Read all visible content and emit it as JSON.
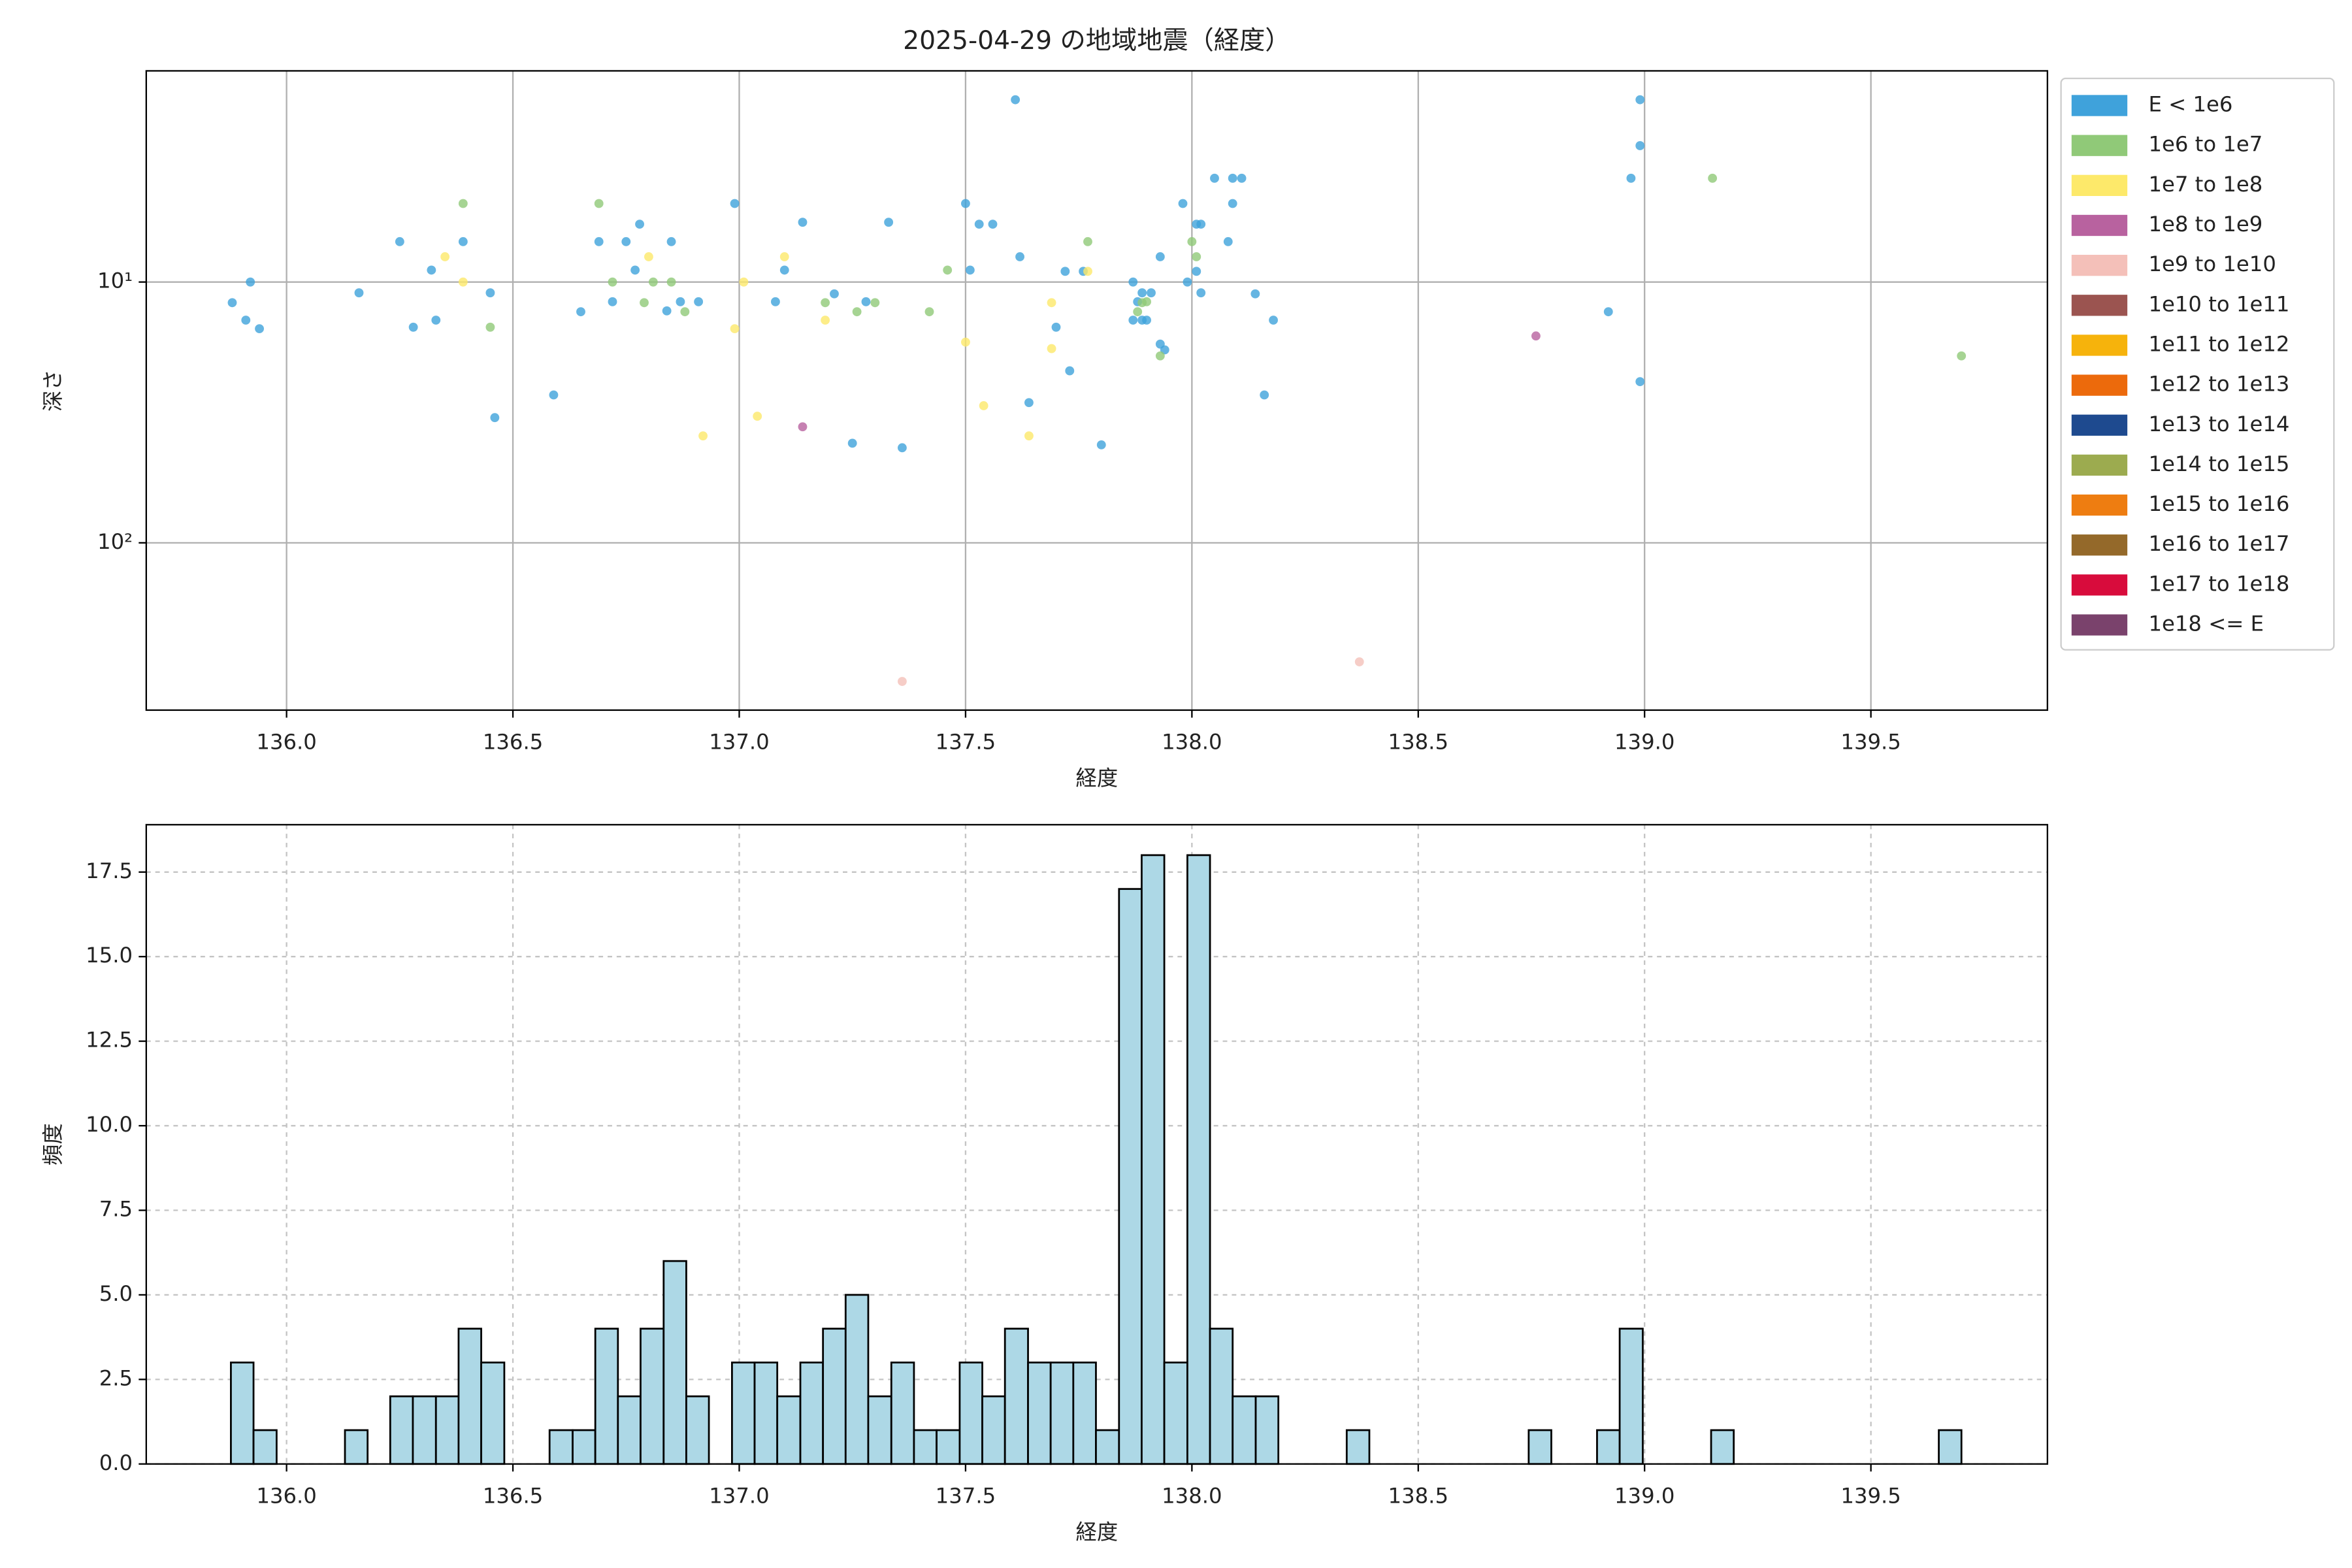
{
  "chart_data": [
    {
      "type": "scatter",
      "title": "2025-04-29 の地域地震（経度）",
      "xlabel": "経度",
      "ylabel": "深さ",
      "xlim": [
        135.69,
        139.89
      ],
      "xticks": [
        {
          "value": 136,
          "label": "136.0"
        },
        {
          "value": 136.5,
          "label": "136.5"
        },
        {
          "value": 137,
          "label": "137.0"
        },
        {
          "value": 137.5,
          "label": "137.5"
        },
        {
          "value": 138,
          "label": "138.0"
        },
        {
          "value": 138.5,
          "label": "138.5"
        },
        {
          "value": 139,
          "label": "139.0"
        },
        {
          "value": 139.5,
          "label": "139.5"
        }
      ],
      "ylim": [
        1.55,
        438
      ],
      "yscale": "log",
      "y_inverted": true,
      "yticks": [
        {
          "value": 10,
          "label": "10¹"
        },
        {
          "value": 100,
          "label": "10²"
        }
      ],
      "grid": true,
      "legend": "outside-right",
      "series": [
        {
          "name": "E < 1e6",
          "color": "#3fa2db",
          "x": [
            135.88,
            135.92,
            135.91,
            135.94,
            136.16,
            136.25,
            136.28,
            136.32,
            136.33,
            136.39,
            136.45,
            136.46,
            136.59,
            136.65,
            136.69,
            136.72,
            136.75,
            136.77,
            136.78,
            136.84,
            136.85,
            136.87,
            136.91,
            136.99,
            137.08,
            137.1,
            137.14,
            137.21,
            137.25,
            137.28,
            137.33,
            137.36,
            137.5,
            137.51,
            137.53,
            137.56,
            137.61,
            137.62,
            137.64,
            137.7,
            137.72,
            137.73,
            137.76,
            137.8,
            137.87,
            137.87,
            137.88,
            137.89,
            137.89,
            137.9,
            137.91,
            137.93,
            137.93,
            137.94,
            137.98,
            137.99,
            138.01,
            138.02,
            138.01,
            138.02,
            138.05,
            138.08,
            138.09,
            138.11,
            138.09,
            138.14,
            138.16,
            138.18,
            138.92,
            138.97,
            138.99,
            138.99,
            138.99
          ],
          "values": [
            12.0,
            10.0,
            14.0,
            15.1,
            11.0,
            7.0,
            14.9,
            9.0,
            14.0,
            7.0,
            11.0,
            33.1,
            27.1,
            13.0,
            7.0,
            11.9,
            7.0,
            9.0,
            6.0,
            12.9,
            7.0,
            11.9,
            11.9,
            5.0,
            11.9,
            9.0,
            5.9,
            11.1,
            41.5,
            11.9,
            5.9,
            43.2,
            5.0,
            9.0,
            6.0,
            6.0,
            2.0,
            8.0,
            29.0,
            14.9,
            9.1,
            21.9,
            9.1,
            42.1,
            10.0,
            14.0,
            11.9,
            11.0,
            14.0,
            14.0,
            11.0,
            8.0,
            17.3,
            18.2,
            5.0,
            10.0,
            6.0,
            6.0,
            9.1,
            11.0,
            4.0,
            7.0,
            4.0,
            4.0,
            5.0,
            11.1,
            27.1,
            14.0,
            13.0,
            4.0,
            3.0,
            2.0,
            24.1
          ]
        },
        {
          "name": "1e6 to 1e7",
          "color": "#90c978",
          "x": [
            136.39,
            136.45,
            136.69,
            136.72,
            136.79,
            136.81,
            136.85,
            136.88,
            137.19,
            137.26,
            137.3,
            137.42,
            137.46,
            137.77,
            137.88,
            137.89,
            137.9,
            138.0,
            138.01,
            137.93,
            139.15,
            139.7
          ],
          "values": [
            5.0,
            14.9,
            5.0,
            10.0,
            12.0,
            10.0,
            10.0,
            13.0,
            12.0,
            13.0,
            12.0,
            13.0,
            9.0,
            7.0,
            13.0,
            12.0,
            11.9,
            7.0,
            8.0,
            19.2,
            4.0,
            19.2
          ]
        },
        {
          "name": "1e7 to 1e8",
          "color": "#fde96a",
          "x": [
            136.35,
            136.39,
            136.8,
            136.99,
            137.01,
            136.92,
            137.04,
            137.1,
            137.19,
            137.5,
            137.54,
            137.64,
            137.69,
            137.69,
            137.77
          ],
          "values": [
            8.0,
            10.0,
            8.0,
            15.1,
            10.0,
            38.9,
            32.7,
            8.0,
            14.0,
            17.0,
            29.8,
            38.9,
            12.0,
            18.0,
            9.1
          ]
        },
        {
          "name": "1e8 to 1e9",
          "color": "#b8629f",
          "x": [
            137.14,
            138.76
          ],
          "values": [
            35.9,
            16.1
          ]
        },
        {
          "name": "1e9 to 1e10",
          "color": "#f4c0b9",
          "x": [
            137.36,
            138.37
          ],
          "values": [
            340,
            286
          ]
        },
        {
          "name": "1e10 to 1e11",
          "color": "#9b5450",
          "x": [],
          "values": []
        },
        {
          "name": "1e11 to 1e12",
          "color": "#f6b30c",
          "x": [],
          "values": []
        },
        {
          "name": "1e12 to 1e13",
          "color": "#ec6a0c",
          "x": [],
          "values": []
        },
        {
          "name": "1e13 to 1e14",
          "color": "#1e4a8f",
          "x": [],
          "values": []
        },
        {
          "name": "1e14 to 1e15",
          "color": "#9cab4f",
          "x": [],
          "values": []
        },
        {
          "name": "1e15 to 1e16",
          "color": "#ee7d11",
          "x": [],
          "values": []
        },
        {
          "name": "1e16 to 1e17",
          "color": "#94692a",
          "x": [],
          "values": []
        },
        {
          "name": "1e17 to 1e18",
          "color": "#d80c3c",
          "x": [],
          "values": []
        },
        {
          "name": "1e18 <= E",
          "color": "#7a426c",
          "x": [],
          "values": []
        }
      ]
    },
    {
      "type": "histogram",
      "xlabel": "経度",
      "ylabel": "頻度",
      "xlim": [
        135.69,
        139.89
      ],
      "xticks": [
        {
          "value": 136,
          "label": "136.0"
        },
        {
          "value": 136.5,
          "label": "136.5"
        },
        {
          "value": 137,
          "label": "137.0"
        },
        {
          "value": 137.5,
          "label": "137.5"
        },
        {
          "value": 138,
          "label": "138.0"
        },
        {
          "value": 138.5,
          "label": "138.5"
        },
        {
          "value": 139,
          "label": "139.0"
        },
        {
          "value": 139.5,
          "label": "139.5"
        }
      ],
      "ylim": [
        0,
        18.9
      ],
      "yticks": [
        {
          "value": 0,
          "label": "0.0"
        },
        2.5,
        {
          "value": 5,
          "label": "5.0"
        },
        7.5,
        {
          "value": 10,
          "label": "10.0"
        },
        12.5,
        {
          "value": 15,
          "label": "15.0"
        },
        17.5
      ],
      "grid": true,
      "grid_style": "dashed",
      "color": "#add8e6",
      "edgecolor": "#000000",
      "bins": [
        135.877,
        135.927,
        135.978,
        136.028,
        136.078,
        136.129,
        136.179,
        136.229,
        136.279,
        136.33,
        136.38,
        136.43,
        136.481,
        136.531,
        136.581,
        136.632,
        136.682,
        136.732,
        136.782,
        136.833,
        136.883,
        136.933,
        136.984,
        137.034,
        137.084,
        137.135,
        137.185,
        137.235,
        137.285,
        137.336,
        137.386,
        137.436,
        137.487,
        137.537,
        137.587,
        137.638,
        137.688,
        137.738,
        137.788,
        137.839,
        137.889,
        137.939,
        137.99,
        138.04,
        138.09,
        138.141,
        138.191,
        138.241,
        138.291,
        138.342,
        138.392,
        138.442,
        138.493,
        138.543,
        138.593,
        138.644,
        138.694,
        138.744,
        138.794,
        138.845,
        138.895,
        138.945,
        138.996,
        139.046,
        139.096,
        139.147,
        139.197,
        139.247,
        139.297,
        139.348,
        139.398,
        139.448,
        139.499,
        139.549,
        139.599,
        139.65,
        139.7
      ],
      "values": [
        3,
        1,
        0,
        0,
        0,
        1,
        0,
        2,
        2,
        2,
        4,
        3,
        0,
        0,
        1,
        1,
        4,
        2,
        4,
        6,
        2,
        0,
        3,
        3,
        2,
        3,
        4,
        5,
        2,
        3,
        1,
        1,
        3,
        2,
        4,
        3,
        3,
        3,
        1,
        17,
        18,
        3,
        18,
        4,
        2,
        2,
        0,
        0,
        0,
        1,
        0,
        0,
        0,
        0,
        0,
        0,
        0,
        1,
        0,
        0,
        1,
        4,
        0,
        0,
        0,
        1,
        0,
        0,
        0,
        0,
        0,
        0,
        0,
        0,
        0,
        1
      ]
    }
  ]
}
